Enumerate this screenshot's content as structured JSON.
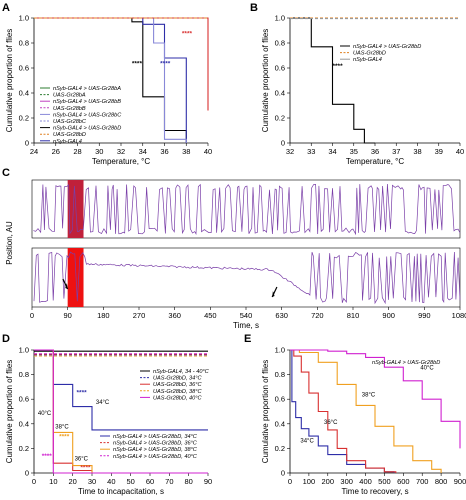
{
  "chart_data": [
    {
      "panel": "A",
      "type": "line",
      "xlabel": "Temperature, °C",
      "ylabel": "Cumulative proportion of flies",
      "xlim": [
        24,
        40
      ],
      "ylim": [
        0,
        1.0
      ],
      "xticks": [
        24,
        26,
        28,
        30,
        32,
        34,
        36,
        38,
        40
      ],
      "yticks": [
        "0",
        "0.2",
        "0.4",
        "0.6",
        "0.8",
        "1.0"
      ],
      "legend": [
        "nSyb-GAL4 > UAS-Gr28bA",
        "UAS-Gr28bA",
        "nSyb-GAL4 > UAS-Gr28bB",
        "UAS-Gr28bB",
        "nSyb-GAL4 > UAS-Gr28bC",
        "UAS-Gr28bC",
        "nSyb-GAL4 > UAS-Gr28bD",
        "UAS-Gr28bD",
        "nSyb-GAL4"
      ],
      "series": [
        {
          "color": "#000000",
          "x": [
            24,
            32,
            33,
            34,
            35,
            36,
            38
          ],
          "y": [
            1.0,
            1.0,
            0.97,
            0.37,
            0.37,
            0.1,
            0.0
          ]
        },
        {
          "color": "#2e2ea8",
          "x": [
            24,
            31,
            34,
            36,
            38
          ],
          "y": [
            1.0,
            1.0,
            0.95,
            0.68,
            0.0
          ]
        },
        {
          "color": "#8888d8",
          "x": [
            24,
            32,
            35,
            36,
            38
          ],
          "y": [
            1.0,
            1.0,
            0.8,
            0.03,
            0.0
          ]
        },
        {
          "color": "#d83030",
          "x": [
            24,
            39,
            40
          ],
          "y": [
            1.0,
            1.0,
            0.26
          ]
        },
        {
          "color": "#e08020",
          "x": [
            24,
            40
          ],
          "y": [
            1.0,
            1.0
          ]
        }
      ],
      "annotations": [
        {
          "text": "****",
          "x": 33.0,
          "y": 0.62,
          "color": "#000000"
        },
        {
          "text": "****",
          "x": 35.6,
          "y": 0.62,
          "color": "#2e2ea8"
        },
        {
          "text": "****",
          "x": 37.6,
          "y": 0.86,
          "color": "#d83030"
        }
      ]
    },
    {
      "panel": "B",
      "type": "line",
      "xlabel": "Temperature, °C",
      "ylabel": "Cumulative proportion of flies",
      "xlim": [
        32,
        40
      ],
      "ylim": [
        0,
        1.0
      ],
      "xticks": [
        32,
        33,
        34,
        35,
        36,
        37,
        38,
        39,
        40
      ],
      "yticks": [
        "0",
        "0.2",
        "0.4",
        "0.6",
        "0.8",
        "1.0"
      ],
      "legend": [
        "nSyb-GAL4 > UAS-Gr28bD",
        "UAS-Gr28bD",
        "nSyb-GAL4"
      ],
      "series": [
        {
          "color": "#000000",
          "x": [
            32,
            33,
            33,
            34,
            34,
            35,
            35,
            35.5,
            35.5,
            36
          ],
          "y": [
            1.0,
            1.0,
            0.77,
            0.77,
            0.31,
            0.31,
            0.11,
            0.11,
            0.0,
            0.0
          ]
        },
        {
          "color": "#e08020",
          "x": [
            32,
            40
          ],
          "y": [
            1.0,
            1.0
          ]
        },
        {
          "color": "#999999",
          "x": [
            32,
            40
          ],
          "y": [
            0.995,
            0.995
          ]
        }
      ],
      "annotations": [
        {
          "text": "****",
          "x": 34.0,
          "y": 0.6,
          "color": "#000000"
        }
      ]
    },
    {
      "panel": "C",
      "type": "line",
      "xlabel": "Time, s",
      "ylabel": "Position, AU",
      "xlim": [
        0,
        1080
      ],
      "xticks": [
        0,
        90,
        180,
        270,
        360,
        450,
        540,
        630,
        720,
        810,
        900,
        990,
        1080
      ],
      "highlight": [
        {
          "trace": "top",
          "from": 90,
          "to": 130
        },
        {
          "trace": "bottom",
          "from": 90,
          "to": 130
        }
      ]
    },
    {
      "panel": "D",
      "type": "line",
      "xlabel": "Time to incapacitation, s",
      "ylabel": "Cumulative proportion of flies",
      "xlim": [
        0,
        90
      ],
      "ylim": [
        0,
        1.0
      ],
      "xticks": [
        0,
        10,
        20,
        30,
        40,
        50,
        60,
        70,
        80,
        90
      ],
      "yticks": [
        "0",
        "0.2",
        "0.4",
        "0.6",
        "0.8",
        "1.0"
      ],
      "legend_top": [
        "nSyb-GAL4, 34 - 40°C",
        "UAS-Gr28bD, 34°C",
        "UAS-Gr28bD, 36°C",
        "UAS-Gr28bD, 38°C",
        "UAS-Gr28bD, 40°C"
      ],
      "legend_bottom": [
        "nSyb-GAL4 > UAS-Gr28bD, 34°C",
        "nSyb-GAL4 > UAS-Gr28bD, 36°C",
        "nSyb-GAL4 > UAS-Gr28bD, 38°C",
        "nSyb-GAL4 > UAS-Gr28bD, 40°C"
      ],
      "series": [
        {
          "color": "#000000",
          "x": [
            0,
            90
          ],
          "y": [
            0.99,
            0.99
          ]
        },
        {
          "color": "#2e2ea8",
          "x": [
            0,
            10,
            10,
            20,
            20,
            30,
            30,
            90
          ],
          "y": [
            1.0,
            1.0,
            0.72,
            0.72,
            0.54,
            0.54,
            0.35,
            0.35
          ]
        },
        {
          "color": "#d83030",
          "x": [
            0,
            10,
            10,
            20,
            20,
            30,
            30,
            90
          ],
          "y": [
            1.0,
            1.0,
            0.08,
            0.08,
            0.02,
            0.02,
            0.0,
            0.0
          ]
        },
        {
          "color": "#f0a020",
          "x": [
            0,
            10,
            10,
            20,
            20,
            30,
            30,
            90
          ],
          "y": [
            1.0,
            1.0,
            0.33,
            0.33,
            0.06,
            0.06,
            0.0,
            0.0
          ]
        },
        {
          "color": "#d020d0",
          "x": [
            0,
            10,
            10,
            90
          ],
          "y": [
            1.0,
            1.0,
            0.0,
            0.0
          ]
        },
        {
          "color": "#2e2ea8",
          "x": [
            0,
            90
          ],
          "y": [
            0.96,
            0.96
          ]
        },
        {
          "color": "#d83030",
          "x": [
            0,
            90
          ],
          "y": [
            0.965,
            0.965
          ]
        },
        {
          "color": "#f0a020",
          "x": [
            0,
            90
          ],
          "y": [
            0.95,
            0.95
          ]
        },
        {
          "color": "#d020d0",
          "x": [
            0,
            90
          ],
          "y": [
            0.97,
            0.97
          ]
        }
      ],
      "annotations": [
        {
          "text": "40°C",
          "x": 2,
          "y": 0.47,
          "color": "#000000"
        },
        {
          "text": "****",
          "x": 4,
          "y": 0.12,
          "color": "#d020d0"
        },
        {
          "text": "38°C",
          "x": 11,
          "y": 0.36,
          "color": "#000000"
        },
        {
          "text": "****",
          "x": 13,
          "y": 0.28,
          "color": "#f0a020"
        },
        {
          "text": "36°C",
          "x": 21,
          "y": 0.1,
          "color": "#000000"
        },
        {
          "text": "****",
          "x": 24,
          "y": 0.03,
          "color": "#d83030"
        },
        {
          "text": "****",
          "x": 22,
          "y": 0.64,
          "color": "#2e2ea8"
        },
        {
          "text": "34°C",
          "x": 32,
          "y": 0.56,
          "color": "#000000"
        }
      ]
    },
    {
      "panel": "E",
      "type": "line",
      "xlabel": "Time to recovery, s",
      "ylabel": "Cumulative proportion of flies",
      "xlim": [
        0,
        900
      ],
      "ylim": [
        0,
        1.0
      ],
      "xticks": [
        0,
        100,
        200,
        300,
        400,
        500,
        600,
        700,
        800,
        900
      ],
      "yticks": [
        "0",
        "0.2",
        "0.4",
        "0.6",
        "0.8",
        "1.0"
      ],
      "legend_title": "nSyb-GAL4 > UAS-Gr28bD",
      "series": [
        {
          "color": "#2e2ea8",
          "x": [
            0,
            10,
            30,
            60,
            100,
            150,
            200,
            300,
            400,
            500,
            550
          ],
          "y": [
            1.0,
            0.58,
            0.45,
            0.36,
            0.3,
            0.22,
            0.15,
            0.07,
            0.04,
            0.01,
            0.0
          ]
        },
        {
          "color": "#d83030",
          "x": [
            0,
            20,
            60,
            100,
            150,
            200,
            250,
            300,
            400,
            500,
            560
          ],
          "y": [
            1.0,
            0.95,
            0.82,
            0.65,
            0.5,
            0.35,
            0.2,
            0.1,
            0.04,
            0.01,
            0.0
          ]
        },
        {
          "color": "#f0a020",
          "x": [
            0,
            50,
            150,
            250,
            350,
            450,
            550,
            650,
            750,
            800
          ],
          "y": [
            1.0,
            0.98,
            0.9,
            0.72,
            0.55,
            0.38,
            0.22,
            0.1,
            0.03,
            0.0
          ]
        },
        {
          "color": "#d020d0",
          "x": [
            0,
            100,
            200,
            300,
            400,
            500,
            600,
            700,
            800,
            900
          ],
          "y": [
            1.0,
            1.0,
            0.99,
            0.97,
            0.94,
            0.86,
            0.75,
            0.6,
            0.42,
            0.2
          ]
        }
      ],
      "annotations": [
        {
          "text": "34°C",
          "x": 55,
          "y": 0.25,
          "color": "#000000"
        },
        {
          "text": "36°C",
          "x": 180,
          "y": 0.4,
          "color": "#000000"
        },
        {
          "text": "38°C",
          "x": 380,
          "y": 0.62,
          "color": "#000000"
        },
        {
          "text": "40°C",
          "x": 690,
          "y": 0.84,
          "color": "#000000"
        }
      ]
    }
  ]
}
